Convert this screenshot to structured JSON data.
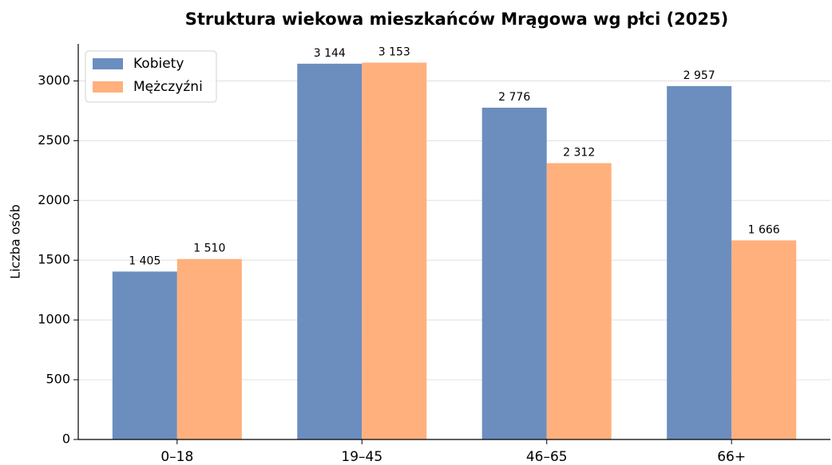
{
  "chart_data": {
    "type": "bar",
    "title": "Struktura wiekowa mieszkańców Mrągowa wg płci (2025)",
    "y_label": "Liczba osób",
    "categories": [
      "0–18",
      "19–45",
      "46–65",
      "66+"
    ],
    "series": [
      {
        "name": "Kobiety",
        "color": "#6b8ebf",
        "values": [
          1405,
          3144,
          2776,
          2957
        ],
        "value_labels": [
          "1 405",
          "3 144",
          "2 776",
          "2 957"
        ]
      },
      {
        "name": "Mężczyźni",
        "color": "#ffb07c",
        "values": [
          1510,
          3153,
          2312,
          1666
        ],
        "value_labels": [
          "1 510",
          "3 153",
          "2 312",
          "1 666"
        ]
      }
    ],
    "ylim": [
      0,
      3310
    ],
    "yticks": [
      0,
      500,
      1000,
      1500,
      2000,
      2500,
      3000
    ],
    "grid": true,
    "legend": "upper left"
  }
}
